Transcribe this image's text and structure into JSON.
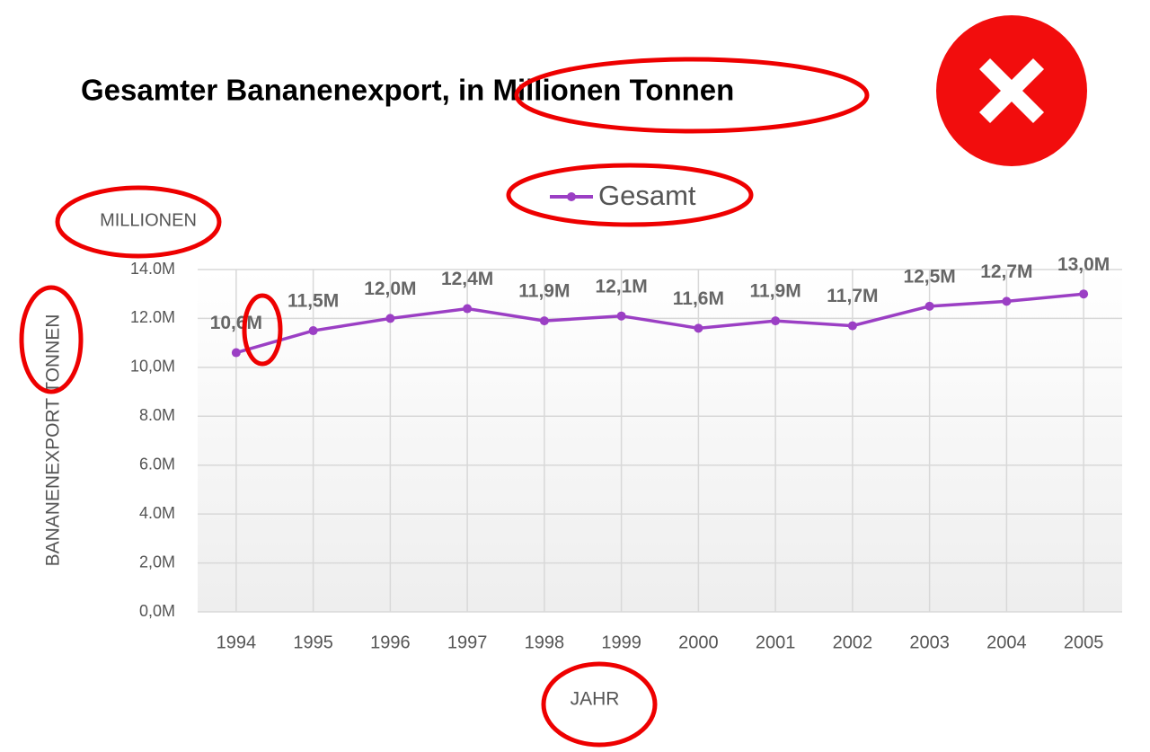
{
  "chart_data": {
    "type": "line",
    "title": "Gesamter Bananenexport, in Millionen Tonnen",
    "ylabel": "BANANENEXPORT TONNEN",
    "y_unit_label": "MILLIONEN",
    "xlabel": "JAHR",
    "categories": [
      "1994",
      "1995",
      "1996",
      "1997",
      "1998",
      "1999",
      "2000",
      "2001",
      "2002",
      "2003",
      "2004",
      "2005"
    ],
    "series": [
      {
        "name": "Gesamt",
        "color": "#9b3fc4",
        "values": [
          10.6,
          11.5,
          12.0,
          12.4,
          11.9,
          12.1,
          11.6,
          11.9,
          11.7,
          12.5,
          12.7,
          13.0
        ],
        "value_labels": [
          "10,6M",
          "11,5M",
          "12,0M",
          "12,4M",
          "11,9M",
          "12,1M",
          "11,6M",
          "11,9M",
          "11,7M",
          "12,5M",
          "12,7M",
          "13,0M"
        ]
      }
    ],
    "ylim": [
      0,
      14
    ],
    "yticks": [
      {
        "value": 0,
        "label": "0,0M"
      },
      {
        "value": 2,
        "label": "2,0M"
      },
      {
        "value": 4,
        "label": "4.0M"
      },
      {
        "value": 6,
        "label": "6.0M"
      },
      {
        "value": 8,
        "label": "8.0M"
      },
      {
        "value": 10,
        "label": "10,0M"
      },
      {
        "value": 12,
        "label": "12.0M"
      },
      {
        "value": 14,
        "label": "14.0M"
      }
    ],
    "grid": true
  }
}
